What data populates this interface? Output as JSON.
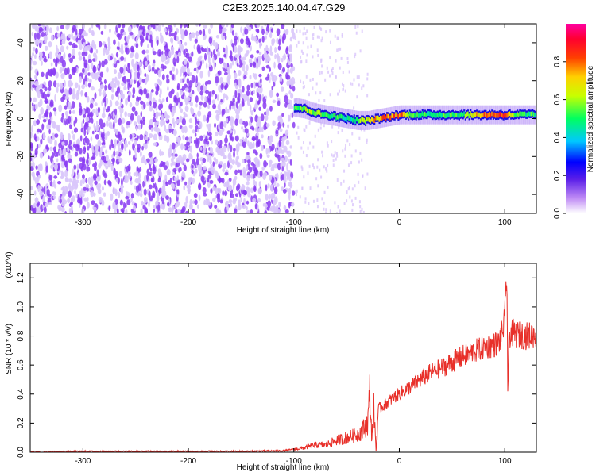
{
  "title": "C2E3.2025.140.04.47.G29",
  "colors": {
    "snr_line": "#e8302a",
    "speckle": "#8a3cf2",
    "speckle_light": "#d9c6fb"
  },
  "chart_data": [
    {
      "type": "heatmap",
      "xlabel": "Height of straight line (km)",
      "ylabel": "Frequency (Hz)",
      "xlim": [
        -350,
        130
      ],
      "ylim": [
        -50,
        50
      ],
      "xticks": [
        -300,
        -200,
        -100,
        0,
        100
      ],
      "yticks": [
        -40,
        -20,
        0,
        20,
        40
      ],
      "colorbar": {
        "label": "Normalized spectral amplitude",
        "range": [
          0.0,
          1.0
        ],
        "ticks": [
          0.0,
          0.2,
          0.4,
          0.6,
          0.8
        ],
        "colormap": "rainbow"
      },
      "noise_region_x": [
        -350,
        -100
      ],
      "ridge": {
        "x": [
          -100,
          -90,
          -80,
          -70,
          -60,
          -50,
          -40,
          -30,
          -20,
          -10,
          0,
          10,
          20,
          40,
          60,
          80,
          100,
          110,
          120,
          130
        ],
        "y": [
          6,
          5,
          3,
          2,
          1,
          0,
          -1,
          -1,
          0,
          1,
          2,
          2,
          2,
          2,
          2,
          2,
          2,
          2,
          2,
          2
        ],
        "amp": [
          0.55,
          0.6,
          0.6,
          0.55,
          0.5,
          0.45,
          0.55,
          0.7,
          0.8,
          0.85,
          0.85,
          0.6,
          0.5,
          0.5,
          0.55,
          0.85,
          0.95,
          0.55,
          0.5,
          0.5
        ]
      }
    },
    {
      "type": "line",
      "xlabel": "Height of straight line (km)",
      "ylabel": "SNR (10 * v/v)",
      "y_multiplier": "(x10^4)",
      "xlim": [
        -350,
        130
      ],
      "ylim": [
        0,
        1.3
      ],
      "xticks": [
        -300,
        -200,
        -100,
        0,
        100
      ],
      "yticks": [
        0.0,
        0.2,
        0.4,
        0.6,
        0.8,
        1.0,
        1.2
      ],
      "series": [
        {
          "x": [
            -350,
            -300,
            -250,
            -200,
            -150,
            -110,
            -100,
            -90,
            -80,
            -70,
            -60,
            -50,
            -40,
            -35,
            -30,
            -28,
            -26,
            -24,
            -22,
            -20,
            -15,
            -10,
            -5,
            0,
            10,
            20,
            30,
            40,
            50,
            60,
            70,
            80,
            90,
            95,
            100,
            102,
            103,
            104,
            106,
            110,
            120,
            130
          ],
          "y": [
            0.0,
            0.005,
            0.005,
            0.005,
            0.005,
            0.01,
            0.02,
            0.03,
            0.05,
            0.05,
            0.08,
            0.1,
            0.12,
            0.15,
            0.2,
            0.39,
            0.1,
            0.3,
            0.0,
            0.3,
            0.32,
            0.35,
            0.38,
            0.4,
            0.45,
            0.5,
            0.55,
            0.58,
            0.62,
            0.66,
            0.69,
            0.72,
            0.74,
            0.76,
            0.9,
            1.28,
            0.33,
            0.8,
            0.82,
            0.81,
            0.8,
            0.81
          ]
        }
      ]
    }
  ]
}
